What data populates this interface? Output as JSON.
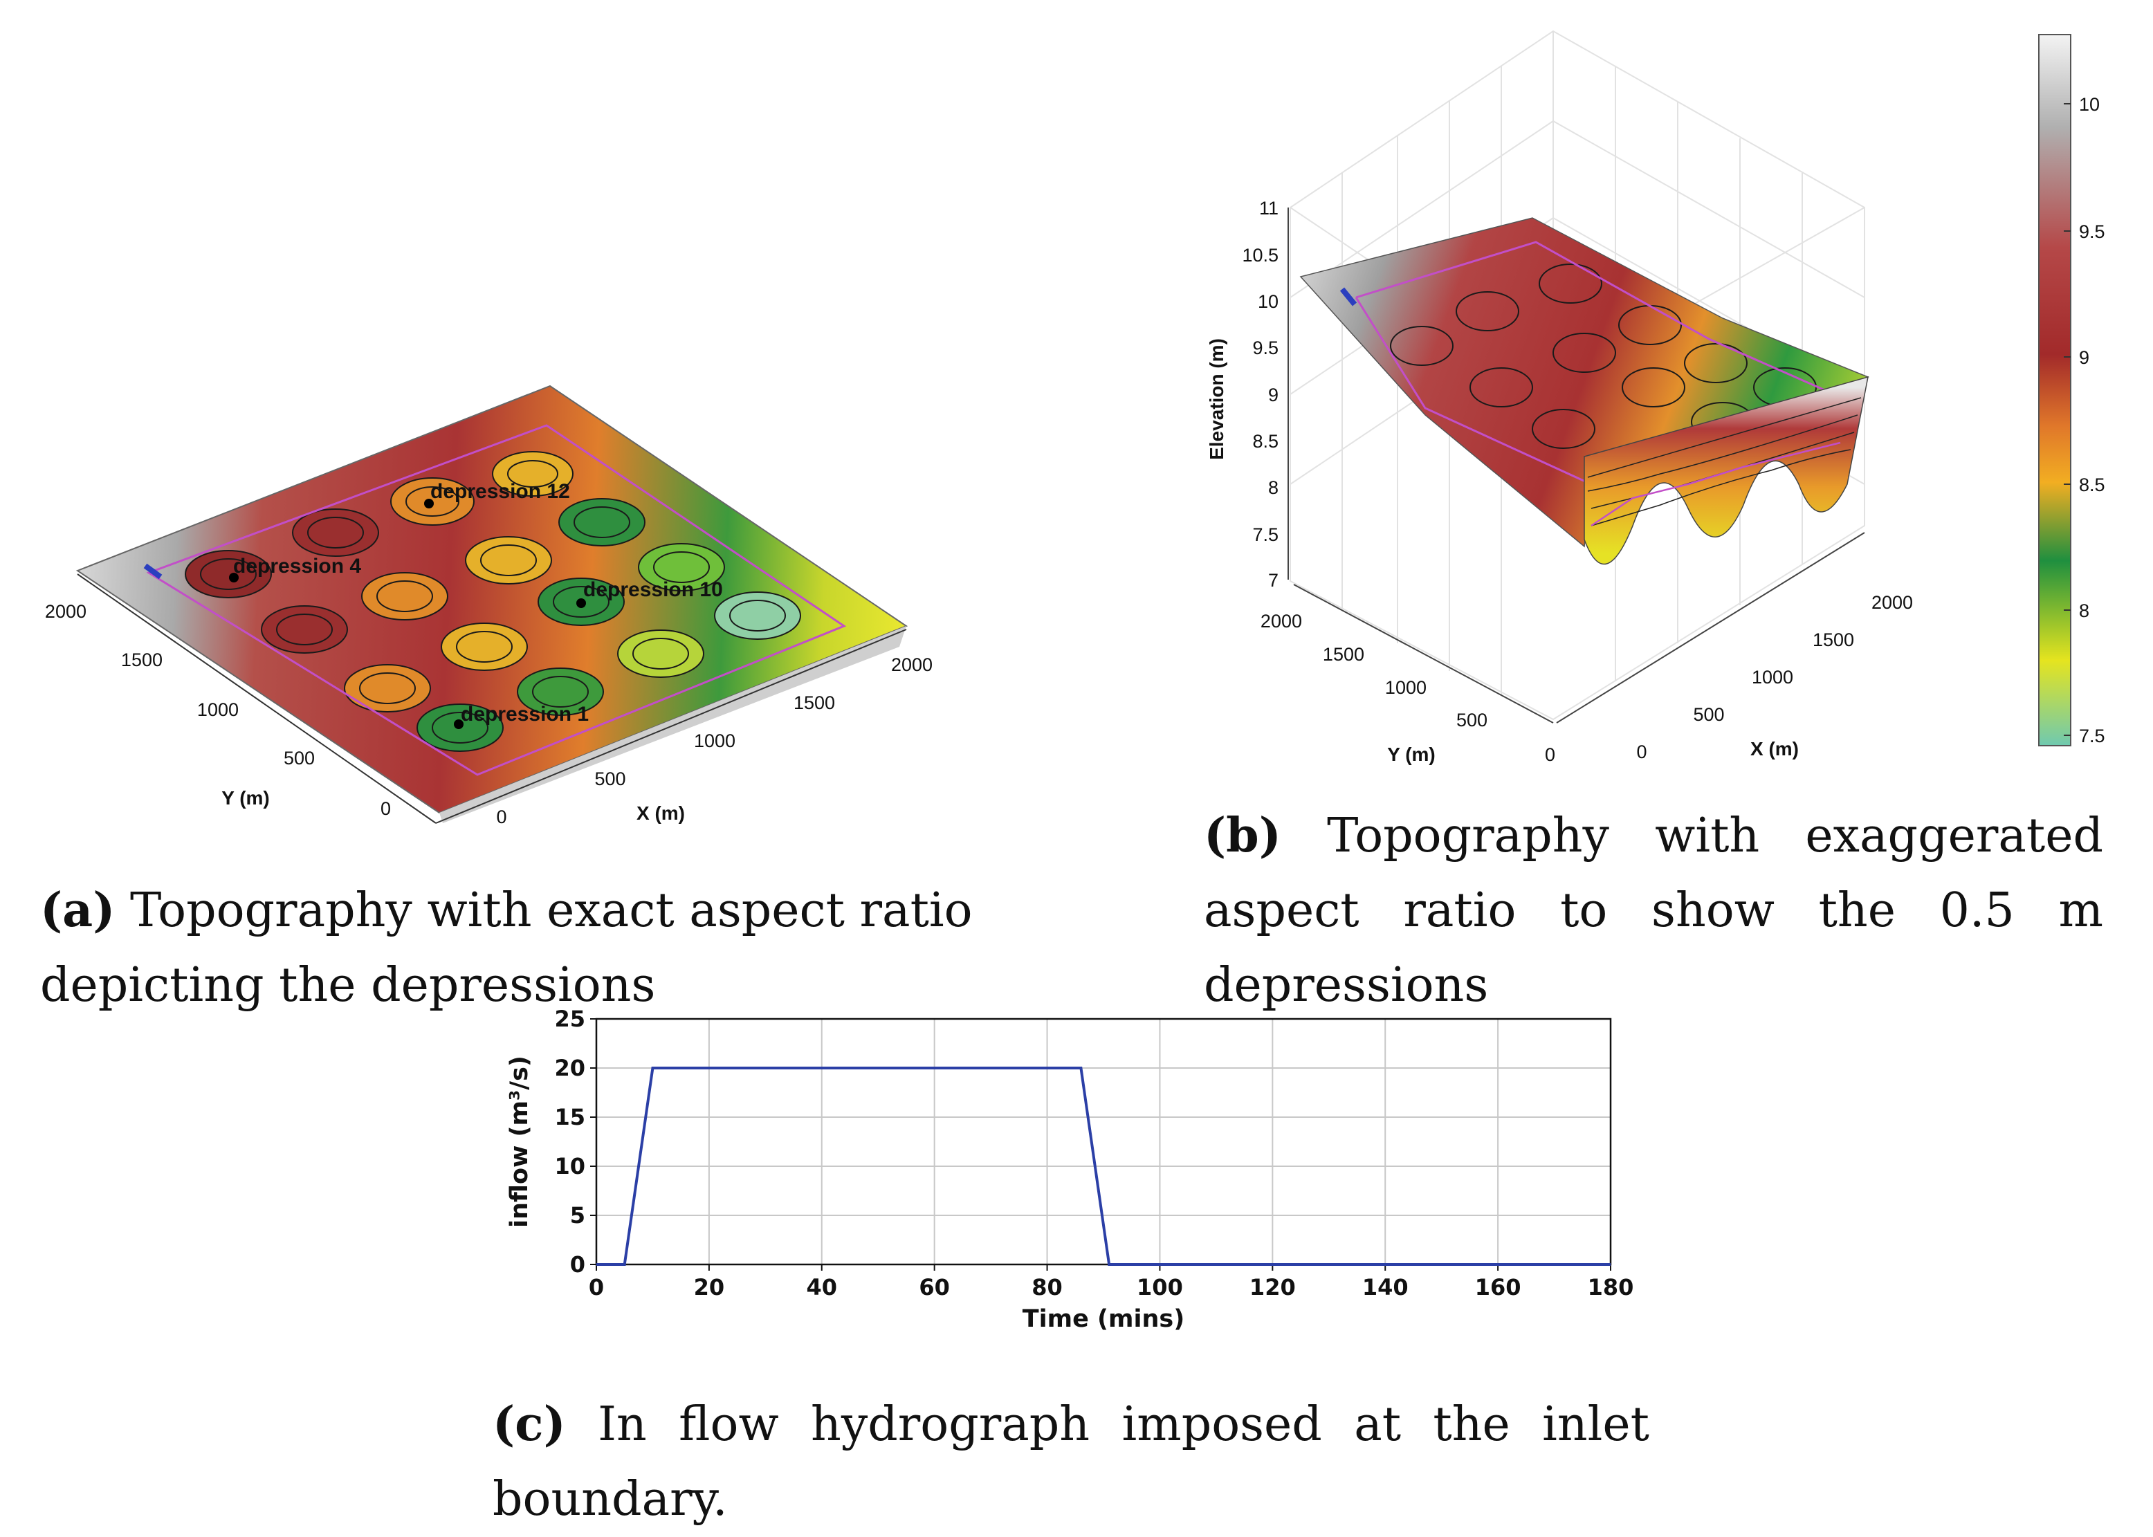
{
  "panel_a": {
    "label": "(a)",
    "caption": "Topography with exact aspect ratio depicting the depressions",
    "x_axis": {
      "label": "X (m)",
      "ticks": [
        "0",
        "500",
        "1000",
        "1500",
        "2000"
      ]
    },
    "y_axis": {
      "label": "Y (m)",
      "ticks": [
        "0",
        "500",
        "1000",
        "1500",
        "2000"
      ]
    },
    "depressions": [
      "depression 12",
      "depression 4",
      "depression 10",
      "depression 1"
    ]
  },
  "panel_b": {
    "label": "(b)",
    "caption": "Topography with exaggerated aspect ratio to show the 0.5 m depressions",
    "z_axis": {
      "label": "Elevation (m)",
      "ticks": [
        "11",
        "10.5",
        "10",
        "9.5",
        "9",
        "8.5",
        "8",
        "7.5",
        "7"
      ]
    },
    "x_axis": {
      "label": "X (m)",
      "ticks": [
        "0",
        "500",
        "1000",
        "1500",
        "2000"
      ]
    },
    "y_axis": {
      "label": "Y (m)",
      "ticks": [
        "2000",
        "1500",
        "1000",
        "500",
        "0"
      ]
    },
    "colorbar": {
      "ticks": [
        "10",
        "9.5",
        "9",
        "8.5",
        "8",
        "7.5"
      ],
      "colors": [
        "#ffffff",
        "#b5b5b5",
        "#b84242",
        "#a62d2d",
        "#e87a28",
        "#f4b223",
        "#5fa83a",
        "#1f8f3f",
        "#e6e620",
        "#6fc9b0"
      ]
    }
  },
  "panel_c": {
    "label": "(c)",
    "caption": "In flow hydrograph imposed at the inlet boundary.",
    "chart_data": {
      "type": "line",
      "title": "",
      "xlabel": "Time (mins)",
      "ylabel": "inflow",
      "ylabel_unit": "(m³/s)",
      "xlim": [
        0,
        180
      ],
      "ylim": [
        0,
        25
      ],
      "xticks": [
        0,
        20,
        40,
        60,
        80,
        100,
        120,
        140,
        160,
        180
      ],
      "yticks": [
        0,
        5,
        10,
        15,
        20,
        25
      ],
      "grid": true,
      "series": [
        {
          "x": [
            0,
            5,
            10,
            86,
            91,
            180
          ],
          "y": [
            0,
            0,
            20,
            20,
            0,
            0
          ],
          "color": "#2b3fa6"
        }
      ]
    }
  }
}
